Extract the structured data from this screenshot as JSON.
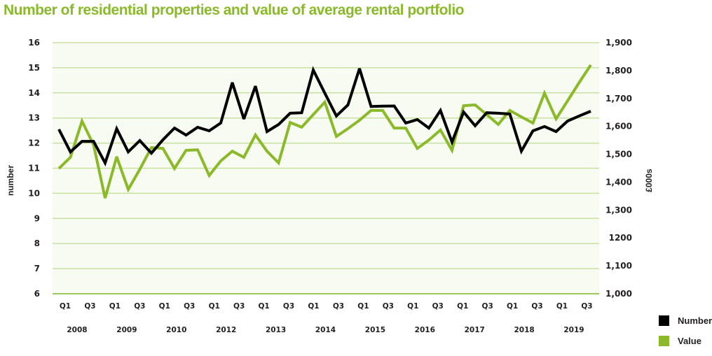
{
  "title": "Number of residential properties and value of average rental portfolio",
  "colors": {
    "title": "#8aba2a",
    "number": "#000000",
    "value": "#8aba2a",
    "grid": "#c8e1a3",
    "axis": "#9cc75a",
    "plot_bg": "#f8fbf2"
  },
  "chart_data": {
    "type": "line",
    "title": "Number of residential properties and value of average rental portfolio",
    "xlabel": "",
    "ylabel": "number",
    "y2label": "£000s",
    "ylim": [
      6,
      16
    ],
    "y2lim": [
      1000,
      1900
    ],
    "grid": true,
    "legend_position": "bottom-right",
    "y_ticks": [
      "6",
      "7",
      "8",
      "9",
      "10",
      "11",
      "12",
      "13",
      "14",
      "15",
      "16"
    ],
    "y2_ticks": [
      "1,000",
      "1,100",
      "1200",
      "1,300",
      "1,400",
      "1,500",
      "1,600",
      "1,700",
      "1,800",
      "1,900"
    ],
    "x_quarter_ticks": [
      "Q1",
      "Q3",
      "Q1",
      "Q3",
      "Q1",
      "Q3",
      "Q1",
      "Q3",
      "Q1",
      "Q3",
      "Q1",
      "Q3",
      "Q1",
      "Q3",
      "Q1",
      "Q3",
      "Q1",
      "Q3",
      "Q1",
      "Q3",
      "Q1",
      "Q3"
    ],
    "x_year_ticks": [
      "2008",
      "2009",
      "2010",
      "2012",
      "2013",
      "2014",
      "2015",
      "2016",
      "2017",
      "2018",
      "2019"
    ],
    "series": [
      {
        "name": "Number",
        "axis": "left",
        "values": [
          12.55,
          11.65,
          12.07,
          12.07,
          11.21,
          12.57,
          11.65,
          12.1,
          11.6,
          12.13,
          12.6,
          12.32,
          12.63,
          12.49,
          12.8,
          14.41,
          12.96,
          14.27,
          12.46,
          12.74,
          13.19,
          13.21,
          14.91,
          13.99,
          13.08,
          13.52,
          14.97,
          13.46,
          13.47,
          13.48,
          12.8,
          12.94,
          12.6,
          13.3,
          12.04,
          13.24,
          12.69,
          13.21,
          13.19,
          13.16,
          11.68,
          12.49,
          12.66,
          12.46,
          12.88,
          13.08,
          13.27
        ]
      },
      {
        "name": "Value",
        "axis": "right",
        "values": [
          1449,
          1489,
          1619,
          1534,
          1343,
          1491,
          1374,
          1446,
          1524,
          1521,
          1449,
          1514,
          1516,
          1424,
          1476,
          1511,
          1489,
          1569,
          1511,
          1469,
          1614,
          1597,
          1642,
          1687,
          1564,
          1592,
          1622,
          1657,
          1657,
          1594,
          1594,
          1521,
          1551,
          1587,
          1514,
          1674,
          1677,
          1642,
          1607,
          1657,
          1634,
          1612,
          1719,
          1627,
          1692,
          1757,
          1820
        ]
      }
    ]
  },
  "legend": [
    {
      "label": "Number"
    },
    {
      "label": "Value"
    }
  ]
}
